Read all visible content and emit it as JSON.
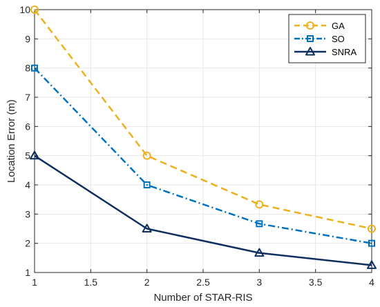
{
  "chart_data": {
    "type": "line",
    "title": "",
    "xlabel": "Number of STAR-RIS",
    "ylabel": "Location Error (m)",
    "xlim": [
      1,
      4
    ],
    "ylim": [
      1,
      10
    ],
    "xticks": [
      1,
      1.5,
      2,
      2.5,
      3,
      3.5,
      4
    ],
    "xtick_labels": [
      "1",
      "1.5",
      "2",
      "2.5",
      "3",
      "3.5",
      "4"
    ],
    "yticks": [
      1,
      2,
      3,
      4,
      5,
      6,
      7,
      8,
      9,
      10
    ],
    "ytick_labels": [
      "1",
      "2",
      "3",
      "4",
      "5",
      "6",
      "7",
      "8",
      "9",
      "10"
    ],
    "grid": true,
    "legend_position": "top-right",
    "x": [
      1,
      2,
      3,
      4
    ],
    "series": [
      {
        "name": "GA",
        "values": [
          10,
          5,
          3.33,
          2.5
        ],
        "color": "#EDB120",
        "line_style": "dashed",
        "marker": "circle"
      },
      {
        "name": "SO",
        "values": [
          8,
          4,
          2.67,
          2
        ],
        "color": "#0072BD",
        "line_style": "dash-dot",
        "marker": "square"
      },
      {
        "name": "SNRA",
        "values": [
          5,
          2.5,
          1.67,
          1.25
        ],
        "color": "#0E2F5E",
        "line_style": "solid",
        "marker": "triangle"
      }
    ]
  }
}
